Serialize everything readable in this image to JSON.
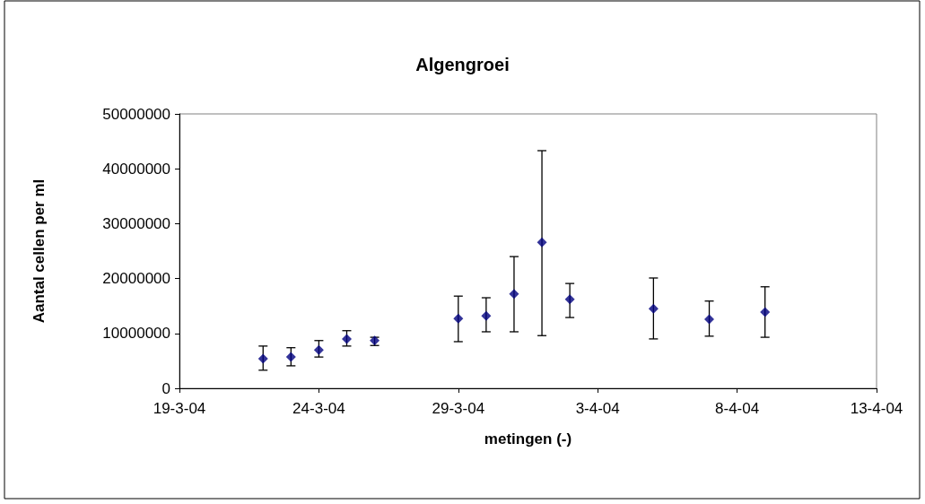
{
  "chart_data": {
    "type": "scatter",
    "title": "Algengroei",
    "xlabel": "metingen (-)",
    "ylabel": "Aantal cellen per ml",
    "x": [
      "--03-22",
      "--03-23",
      "--03-24",
      "--03-25",
      "--03-26",
      "--03-29",
      "--03-30",
      "--03-31",
      "--04-01",
      "--04-02",
      "--04-05",
      "--04-07",
      "--04-09"
    ],
    "values": [
      5400000,
      5700000,
      7000000,
      9000000,
      8700000,
      12700000,
      13200000,
      17200000,
      26600000,
      16200000,
      14500000,
      12600000,
      13900000
    ],
    "errors": [
      [
        3300000,
        7700000
      ],
      [
        4100000,
        7400000
      ],
      [
        5700000,
        8700000
      ],
      [
        7700000,
        10500000
      ],
      [
        7800000,
        9300000
      ],
      [
        8500000,
        16800000
      ],
      [
        10300000,
        16500000
      ],
      [
        10300000,
        24000000
      ],
      [
        9600000,
        43300000
      ],
      [
        12900000,
        19100000
      ],
      [
        9000000,
        20100000
      ],
      [
        9500000,
        15900000
      ],
      [
        9300000,
        18500000
      ]
    ],
    "color": "#000080",
    "marker": "diamond",
    "xlim": [
      "--03-19",
      "--04-13"
    ],
    "xticks": [
      {
        "value": "--03-19",
        "label": "19-3-04"
      },
      {
        "value": "--03-24",
        "label": "24-3-04"
      },
      {
        "value": "--03-29",
        "label": "29-3-04"
      },
      {
        "value": "--04-03",
        "label": "3-4-04"
      },
      {
        "value": "--04-08",
        "label": "8-4-04"
      },
      {
        "value": "--04-13",
        "label": "13-4-04"
      }
    ],
    "ylim": [
      0,
      50000000
    ],
    "yticks": [
      0,
      10000000,
      20000000,
      30000000,
      40000000,
      50000000
    ],
    "grid": false
  }
}
